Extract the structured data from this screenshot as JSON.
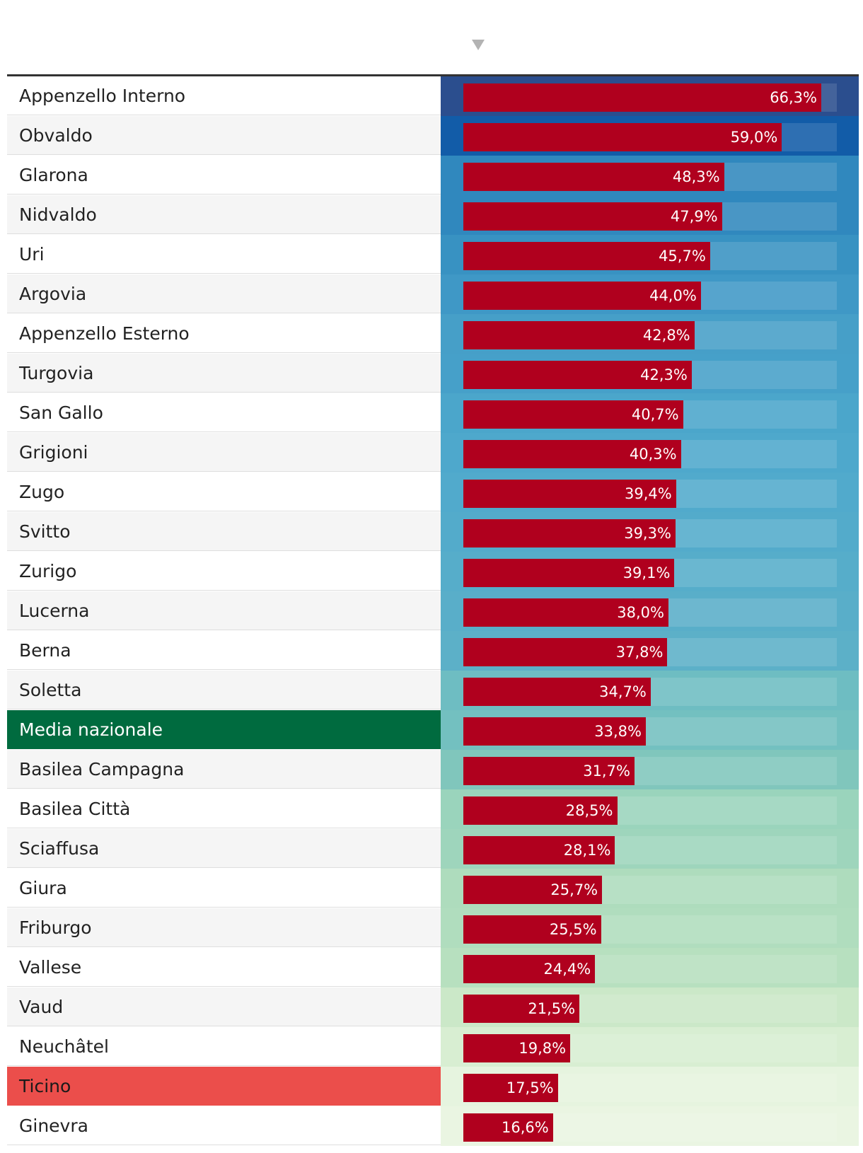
{
  "chart_data": {
    "type": "bar",
    "orientation": "horizontal",
    "sort_indicator": "descending",
    "value_format": "percent-comma",
    "xlim": [
      0,
      66.3
    ],
    "rows": [
      {
        "label": "Appenzello Interno",
        "value": 66.3,
        "display": "66,3%",
        "cell_color": "#2b4e8e"
      },
      {
        "label": "Obvaldo",
        "value": 59.0,
        "display": "59,0%",
        "cell_color": "#125ca8"
      },
      {
        "label": "Glarona",
        "value": 48.3,
        "display": "48,3%",
        "cell_color": "#3088be"
      },
      {
        "label": "Nidvaldo",
        "value": 47.9,
        "display": "47,9%",
        "cell_color": "#3088be"
      },
      {
        "label": "Uri",
        "value": 45.7,
        "display": "45,7%",
        "cell_color": "#3892c2"
      },
      {
        "label": "Argovia",
        "value": 44.0,
        "display": "44,0%",
        "cell_color": "#3f98c6"
      },
      {
        "label": "Appenzello Esterno",
        "value": 42.8,
        "display": "42,8%",
        "cell_color": "#469fc8"
      },
      {
        "label": "Turgovia",
        "value": 42.3,
        "display": "42,3%",
        "cell_color": "#46a0c9"
      },
      {
        "label": "San Gallo",
        "value": 40.7,
        "display": "40,7%",
        "cell_color": "#4ba6cb"
      },
      {
        "label": "Grigioni",
        "value": 40.3,
        "display": "40,3%",
        "cell_color": "#4ea8cc"
      },
      {
        "label": "Zugo",
        "value": 39.4,
        "display": "39,4%",
        "cell_color": "#51aacc"
      },
      {
        "label": "Svitto",
        "value": 39.3,
        "display": "39,3%",
        "cell_color": "#53abcb"
      },
      {
        "label": "Zurigo",
        "value": 39.1,
        "display": "39,1%",
        "cell_color": "#56adca"
      },
      {
        "label": "Lucerna",
        "value": 38.0,
        "display": "38,0%",
        "cell_color": "#59aec9"
      },
      {
        "label": "Berna",
        "value": 37.8,
        "display": "37,8%",
        "cell_color": "#5cb0c8"
      },
      {
        "label": "Soletta",
        "value": 34.7,
        "display": "34,7%",
        "cell_color": "#6ebdc2"
      },
      {
        "label": "Media nazionale",
        "value": 33.8,
        "display": "33,8%",
        "cell_color": "#73c0c0",
        "highlight": "green"
      },
      {
        "label": "Basilea Campagna",
        "value": 31.7,
        "display": "31,7%",
        "cell_color": "#80c6bc"
      },
      {
        "label": "Basilea Città",
        "value": 28.5,
        "display": "28,5%",
        "cell_color": "#9ad4bc"
      },
      {
        "label": "Sciaffusa",
        "value": 28.1,
        "display": "28,1%",
        "cell_color": "#9ed5bc"
      },
      {
        "label": "Giura",
        "value": 25.7,
        "display": "25,7%",
        "cell_color": "#aedcbd"
      },
      {
        "label": "Friburgo",
        "value": 25.5,
        "display": "25,5%",
        "cell_color": "#b0ddbe"
      },
      {
        "label": "Vallese",
        "value": 24.4,
        "display": "24,4%",
        "cell_color": "#b7e0bf"
      },
      {
        "label": "Vaud",
        "value": 21.5,
        "display": "21,5%",
        "cell_color": "#cbe8c8"
      },
      {
        "label": "Neuchâtel",
        "value": 19.8,
        "display": "19,8%",
        "cell_color": "#d8eed2"
      },
      {
        "label": "Ticino",
        "value": 17.5,
        "display": "17,5%",
        "cell_color": "#e6f4df",
        "highlight": "red"
      },
      {
        "label": "Ginevra",
        "value": 16.6,
        "display": "16,6%",
        "cell_color": "#eaf5e2"
      }
    ],
    "colors": {
      "bar": "#b0001e",
      "highlight_green": "#006b3f",
      "highlight_red": "#eb4e4b",
      "header_rule": "#333333",
      "sort_arrow": "#b3b3b3"
    }
  }
}
